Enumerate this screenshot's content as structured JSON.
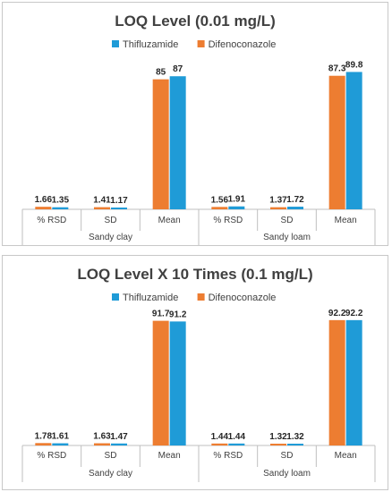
{
  "chart_data": [
    {
      "type": "bar",
      "title": "LOQ Level (0.01 mg/L)",
      "legend_position": "top-right",
      "grid": false,
      "ylim": [
        0,
        100
      ],
      "categories": [
        "% RSD",
        "SD",
        "Mean",
        "% RSD",
        "SD",
        "Mean"
      ],
      "groups": [
        {
          "label": "Sandy clay",
          "span": 3
        },
        {
          "label": "Sandy loam",
          "span": 3
        }
      ],
      "legend_order": [
        "Thifluzamide",
        "Difenoconazole"
      ],
      "colors": {
        "Difenoconazole": "#ed7d31",
        "Thifluzamide": "#1f9bd7"
      },
      "series": [
        {
          "name": "Difenoconazole",
          "values": [
            1.66,
            1.41,
            85,
            1.56,
            1.37,
            87.3
          ],
          "labels": [
            "1.66",
            "1.41",
            "85",
            "1.56",
            "1.37",
            "87.3"
          ]
        },
        {
          "name": "Thifluzamide",
          "values": [
            1.35,
            1.17,
            87,
            1.91,
            1.72,
            89.8
          ],
          "labels": [
            "1.35",
            "1.17",
            "87",
            "1.91",
            "1.72",
            "89.8"
          ]
        }
      ]
    },
    {
      "type": "bar",
      "title": "LOQ Level X 10 Times (0.1 mg/L)",
      "legend_position": "top-right",
      "grid": false,
      "ylim": [
        0,
        100
      ],
      "categories": [
        "% RSD",
        "SD",
        "Mean",
        "% RSD",
        "SD",
        "Mean"
      ],
      "groups": [
        {
          "label": "Sandy clay",
          "span": 3
        },
        {
          "label": "Sandy loam",
          "span": 3
        }
      ],
      "legend_order": [
        "Thifluzamide",
        "Difenoconazole"
      ],
      "colors": {
        "Difenoconazole": "#ed7d31",
        "Thifluzamide": "#1f9bd7"
      },
      "series": [
        {
          "name": "Difenoconazole",
          "values": [
            1.78,
            1.63,
            91.7,
            1.44,
            1.32,
            92.2
          ],
          "labels": [
            "1.78",
            "1.63",
            "91.7",
            "1.44",
            "1.32",
            "92.2"
          ]
        },
        {
          "name": "Thifluzamide",
          "values": [
            1.61,
            1.47,
            91.2,
            1.44,
            1.32,
            92.2
          ],
          "labels": [
            "1.61",
            "1.47",
            "91.2",
            "1.44",
            "1.32",
            "92.2"
          ]
        }
      ]
    }
  ]
}
